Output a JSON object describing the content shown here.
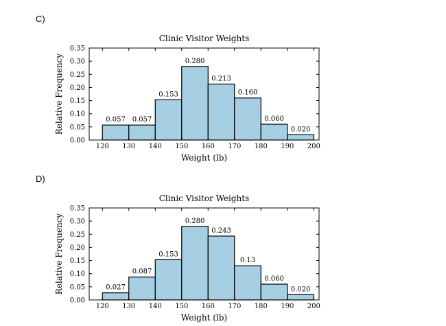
{
  "charts": [
    {
      "option_label": "C)",
      "chart_data": {
        "type": "bar",
        "title": "Clinic Visitor Weights",
        "xlabel": "Weight (lb)",
        "ylabel": "Relative Frequency",
        "bin_edges": [
          120,
          130,
          140,
          150,
          160,
          170,
          180,
          190,
          200
        ],
        "x_ticks": [
          120,
          130,
          140,
          150,
          160,
          170,
          180,
          190,
          200
        ],
        "values": [
          0.057,
          0.057,
          0.153,
          0.28,
          0.213,
          0.16,
          0.06,
          0.02
        ],
        "value_labels": [
          "0.057",
          "0.057",
          "0.153",
          "0.280",
          "0.213",
          "0.160",
          "0.060",
          "0.020"
        ],
        "y_ticks": [
          "0.00",
          "0.05",
          "0.10",
          "0.15",
          "0.20",
          "0.25",
          "0.30",
          "0.35"
        ],
        "xlim": [
          115,
          202
        ],
        "ylim": [
          0,
          0.35
        ],
        "grid": false,
        "bar_color": "#a6cfe3"
      }
    },
    {
      "option_label": "D)",
      "chart_data": {
        "type": "bar",
        "title": "Clinic Visitor Weights",
        "xlabel": "Weight (lb)",
        "ylabel": "Relative Frequency",
        "bin_edges": [
          120,
          130,
          140,
          150,
          160,
          170,
          180,
          190,
          200
        ],
        "x_ticks": [
          120,
          130,
          140,
          150,
          160,
          170,
          180,
          190,
          200
        ],
        "values": [
          0.027,
          0.087,
          0.153,
          0.28,
          0.243,
          0.13,
          0.06,
          0.02
        ],
        "value_labels": [
          "0.027",
          "0.087",
          "0.153",
          "0.280",
          "0.243",
          "0.13",
          "0.060",
          "0.020"
        ],
        "y_ticks": [
          "0.00",
          "0.05",
          "0.10",
          "0.15",
          "0.20",
          "0.25",
          "0.30",
          "0.35"
        ],
        "xlim": [
          115,
          202
        ],
        "ylim": [
          0,
          0.35
        ],
        "grid": false,
        "bar_color": "#a6cfe3"
      }
    }
  ]
}
